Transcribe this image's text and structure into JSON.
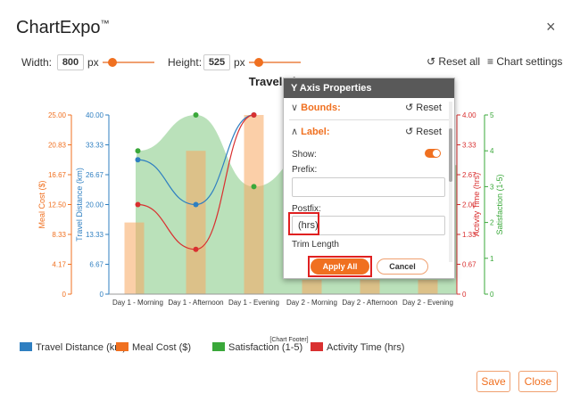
{
  "app": {
    "title": "ChartExpo",
    "trademark": "™",
    "close_glyph": "×"
  },
  "toolbar": {
    "width_label": "Width:",
    "width_value": "800",
    "width_unit": "px",
    "height_label": "Height:",
    "height_value": "525",
    "height_unit": "px",
    "reset_all": "Reset all",
    "chart_settings": "Chart settings"
  },
  "chart_data": {
    "type": "bar",
    "title": "Travel Itinerary",
    "categories": [
      "Day 1 - Morning",
      "Day 1 - Afternoon",
      "Day 1 - Evening",
      "Day 2 - Morning",
      "Day 2 - Afternoon",
      "Day 2 - Evening"
    ],
    "series": [
      {
        "name": "Travel Distance (km)",
        "type": "line",
        "axis": "left-inner",
        "values": [
          30,
          20,
          40,
          null,
          null,
          null
        ]
      },
      {
        "name": "Meal Cost ($)",
        "type": "bar",
        "axis": "left-outer",
        "values": [
          10,
          20,
          25,
          null,
          null,
          null
        ]
      },
      {
        "name": "Satisfaction (1-5)",
        "type": "area",
        "axis": "right-outer",
        "values": [
          4,
          5,
          3,
          null,
          null,
          null
        ]
      },
      {
        "name": "Activity Time (hrs)",
        "type": "line",
        "axis": "right-inner",
        "values": [
          2,
          1,
          4,
          null,
          null,
          null
        ]
      }
    ],
    "axes": {
      "left_outer": {
        "label": "Meal Cost ($)",
        "ticks": [
          "0",
          "4.17",
          "8.33",
          "12.50",
          "16.67",
          "20.83",
          "25.00"
        ],
        "ylim": [
          0,
          25
        ],
        "color": "#f07020"
      },
      "left_inner": {
        "label": "Travel Distance (km)",
        "ticks": [
          "0",
          "6.67",
          "13.33",
          "20.00",
          "26.67",
          "33.33",
          "40.00"
        ],
        "ylim": [
          0,
          40
        ],
        "color": "#2f7fc1"
      },
      "right_inner": {
        "label": "Activity Time (hrs)",
        "ticks": [
          "0",
          "0.67",
          "1.33",
          "2.00",
          "2.67",
          "3.33",
          "4.00"
        ],
        "ylim": [
          0,
          4
        ],
        "color": "#d93030"
      },
      "right_outer": {
        "label": "Satisfaction (1-5)",
        "ticks": [
          "0",
          "1",
          "2",
          "3",
          "4",
          "5"
        ],
        "ylim": [
          0,
          5
        ],
        "color": "#3aa83a"
      }
    },
    "footer": "[Chart Footer]"
  },
  "legend": [
    {
      "label": "Travel Distance (km)",
      "color": "#2f7fc1"
    },
    {
      "label": "Meal Cost ($)",
      "color": "#f07020"
    },
    {
      "label": "Satisfaction (1-5)",
      "color": "#3aa83a"
    },
    {
      "label": "Activity Time (hrs)",
      "color": "#d93030"
    }
  ],
  "dialog": {
    "title": "Y Axis Properties",
    "bounds_label": "Bounds:",
    "label_label": "Label:",
    "reset": "Reset",
    "show_label": "Show:",
    "show_on": true,
    "prefix_label": "Prefix:",
    "prefix_value": "",
    "postfix_label": "Postfix:",
    "postfix_value": "(hrs)",
    "trim_length_label": "Trim Length",
    "apply_all": "Apply All",
    "cancel": "Cancel"
  },
  "footer_buttons": {
    "save": "Save",
    "close": "Close"
  }
}
